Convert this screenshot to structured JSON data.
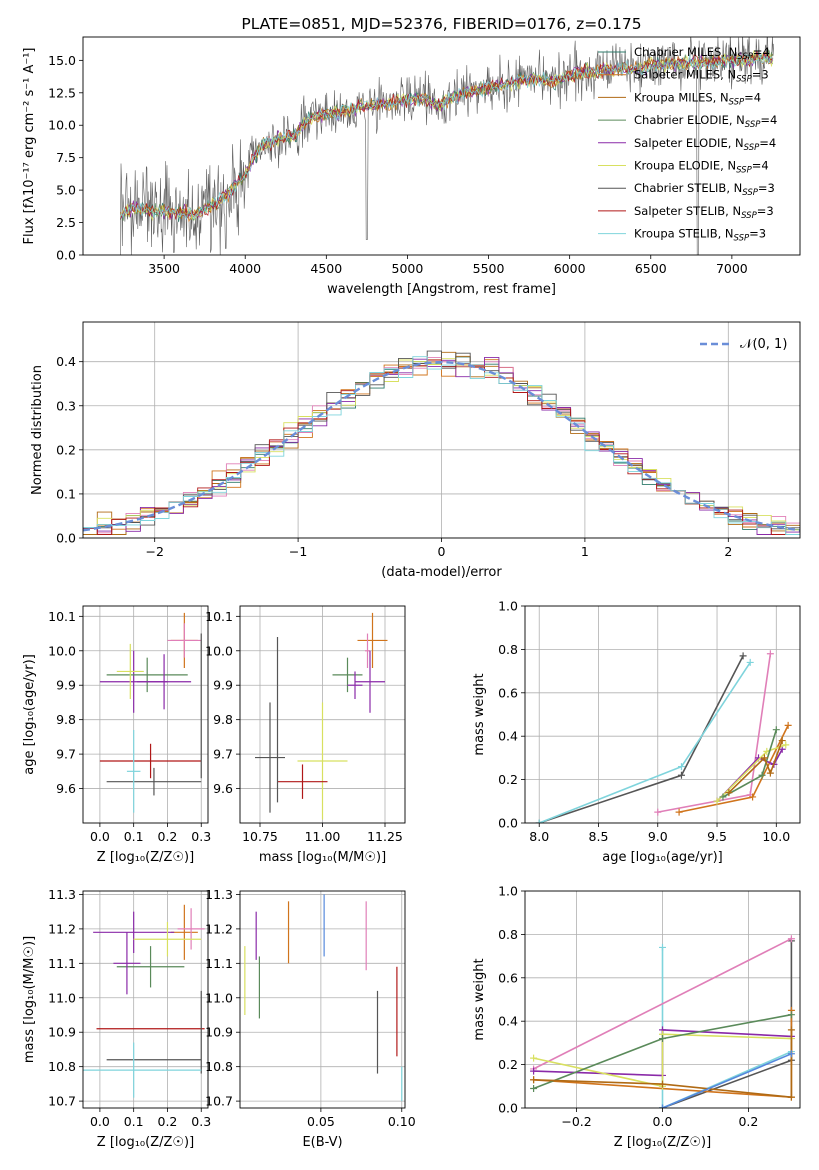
{
  "title": "PLATE=0851, MJD=52376, FIBERID=0176, z=0.175",
  "colors": {
    "chabrier_miles": "#2c7a6a",
    "salpeter_miles": "#d0741c",
    "kroupa_miles": "#b06a14",
    "chabrier_elodie": "#5a8a5a",
    "salpeter_elodie": "#8a2aa8",
    "kroupa_elodie": "#d8e060",
    "chabrier_stelib": "#555555",
    "salpeter_stelib": "#b01818",
    "kroupa_stelib": "#7fd4dc",
    "gauss": "#6a8ed8",
    "pink": "#e07fb8",
    "blue": "#5588dd"
  },
  "chart_data": [
    {
      "type": "line",
      "title": "PLATE=0851, MJD=52376, FIBERID=0176, z=0.175",
      "xlabel": "wavelength [Angstrom, rest frame]",
      "ylabel": "Flux [fλ10⁻¹⁷ erg cm⁻² s⁻¹ A⁻¹]",
      "xlim": [
        3000,
        7420
      ],
      "ylim": [
        0,
        16.8
      ],
      "xticks": [
        "3500",
        "4000",
        "4500",
        "5000",
        "5500",
        "6000",
        "6500",
        "7000"
      ],
      "yticks": [
        "0.0",
        "2.5",
        "5.0",
        "7.5",
        "10.0",
        "12.5",
        "15.0"
      ],
      "continuum": [
        [
          3230,
          3.1
        ],
        [
          3300,
          3.6
        ],
        [
          3450,
          3.4
        ],
        [
          3600,
          3.3
        ],
        [
          3700,
          3.2
        ],
        [
          3800,
          3.8
        ],
        [
          3900,
          4.8
        ],
        [
          4000,
          6.2
        ],
        [
          4100,
          8.4
        ],
        [
          4200,
          8.9
        ],
        [
          4300,
          9.2
        ],
        [
          4400,
          10.6
        ],
        [
          4500,
          10.9
        ],
        [
          4600,
          11.0
        ],
        [
          4700,
          11.4
        ],
        [
          4800,
          11.6
        ],
        [
          4900,
          11.7
        ],
        [
          5000,
          12.0
        ],
        [
          5100,
          12.1
        ],
        [
          5200,
          11.5
        ],
        [
          5300,
          12.3
        ],
        [
          5400,
          12.6
        ],
        [
          5500,
          12.9
        ],
        [
          5600,
          13.1
        ],
        [
          5700,
          13.4
        ],
        [
          5800,
          13.6
        ],
        [
          5900,
          13.3
        ],
        [
          6000,
          13.9
        ],
        [
          6100,
          14.1
        ],
        [
          6200,
          14.2
        ],
        [
          6300,
          14.4
        ],
        [
          6400,
          14.3
        ],
        [
          6500,
          14.6
        ],
        [
          6600,
          14.7
        ],
        [
          6700,
          14.8
        ],
        [
          6800,
          14.8
        ],
        [
          6900,
          14.9
        ],
        [
          7000,
          15.0
        ],
        [
          7100,
          15.1
        ],
        [
          7200,
          15.2
        ],
        [
          7260,
          15.0
        ]
      ],
      "spikes": [
        [
          3560,
          0.2
        ],
        [
          3880,
          0.5
        ],
        [
          4750,
          1.2
        ],
        [
          6790,
          0.0
        ]
      ],
      "series": [
        {
          "name": "Chabrier MILES, N_SSP=4"
        },
        {
          "name": "Salpeter MILES, N_SSP=3"
        },
        {
          "name": "Kroupa MILES, N_SSP=4"
        },
        {
          "name": "Chabrier ELODIE, N_SSP=4"
        },
        {
          "name": "Salpeter ELODIE, N_SSP=4"
        },
        {
          "name": "Kroupa ELODIE, N_SSP=4"
        },
        {
          "name": "Chabrier STELIB, N_SSP=3"
        },
        {
          "name": "Salpeter STELIB, N_SSP=3"
        },
        {
          "name": "Kroupa STELIB, N_SSP=3"
        }
      ],
      "legend": "right"
    },
    {
      "type": "histogram",
      "xlabel": "(data-model)/error",
      "ylabel": "Normed distribution",
      "xlim": [
        -2.5,
        2.5
      ],
      "ylim": [
        0,
        0.49
      ],
      "xticks": [
        "−2",
        "−1",
        "0",
        "1",
        "2"
      ],
      "yticks": [
        "0.0",
        "0.1",
        "0.2",
        "0.3",
        "0.4"
      ],
      "bin_width": 0.1,
      "legend_label": "𝒩(0, 1)",
      "grid": true
    },
    {
      "type": "scatter",
      "xlabel": "Z [log10(Z/Z☉)]",
      "ylabel": "age  [log10(age/yr)]",
      "xlim": [
        -0.05,
        0.32
      ],
      "ylim": [
        9.5,
        10.13
      ],
      "xticks": [
        "0.0",
        "0.1",
        "0.2",
        "0.3"
      ],
      "yticks": [
        "9.6",
        "9.7",
        "9.8",
        "9.9",
        "10.0",
        "10.1"
      ],
      "points": [
        {
          "x": 0.25,
          "y": 10.03,
          "xe": 0.04,
          "ye": 0.08
        },
        {
          "x": 0.25,
          "y": 10.03,
          "xe": 0.05,
          "ye": 0.05
        },
        {
          "x": 0.1,
          "y": 9.91,
          "xe": 0.1,
          "ye": 0.09
        },
        {
          "x": 0.14,
          "y": 9.93,
          "xe": 0.12,
          "ye": 0.05
        },
        {
          "x": 0.19,
          "y": 9.91,
          "xe": 0.08,
          "ye": 0.08
        },
        {
          "x": 0.09,
          "y": 9.94,
          "xe": 0.04,
          "ye": 0.08
        },
        {
          "x": 0.15,
          "y": 9.68,
          "xe": 0.15,
          "ye": 0.05
        },
        {
          "x": 0.16,
          "y": 9.62,
          "xe": 0.14,
          "ye": 0.04
        },
        {
          "x": 0.3,
          "y": 9.84,
          "xe": 0.0,
          "ye": 0.21
        },
        {
          "x": 0.1,
          "y": 9.65,
          "xe": 0.02,
          "ye": 0.12
        }
      ]
    },
    {
      "type": "scatter",
      "xlabel": "mass [log10(M/M☉)]",
      "xlim": [
        10.67,
        11.33
      ],
      "ylim": [
        9.5,
        10.13
      ],
      "xticks": [
        "10.75",
        "11.00",
        "11.25"
      ],
      "yticks": [
        "9.6",
        "9.7",
        "9.8",
        "9.9",
        "10.0",
        "10.1"
      ],
      "points": [
        {
          "x": 11.2,
          "y": 10.03,
          "xe": 0.06,
          "ye": 0.08
        },
        {
          "x": 11.18,
          "y": 10.0,
          "xe": 0.01,
          "ye": 0.05
        },
        {
          "x": 11.19,
          "y": 9.91,
          "xe": 0.06,
          "ye": 0.09
        },
        {
          "x": 11.1,
          "y": 9.93,
          "xe": 0.06,
          "ye": 0.05
        },
        {
          "x": 11.13,
          "y": 9.9,
          "xe": 0.03,
          "ye": 0.04
        },
        {
          "x": 11.0,
          "y": 9.68,
          "xe": 0.1,
          "ye": 0.17
        },
        {
          "x": 10.92,
          "y": 9.62,
          "xe": 0.1,
          "ye": 0.05
        },
        {
          "x": 10.82,
          "y": 9.8,
          "xe": 0.0,
          "ye": 0.24
        },
        {
          "x": 10.79,
          "y": 9.69,
          "xe": 0.06,
          "ye": 0.16
        }
      ]
    },
    {
      "type": "line",
      "xlabel": "age  [log10(age/yr)]",
      "ylabel": "mass weight",
      "xlim": [
        7.88,
        10.2
      ],
      "ylim": [
        0,
        1.0
      ],
      "xticks": [
        "8.0",
        "8.5",
        "9.0",
        "9.5",
        "10.0"
      ],
      "yticks": [
        "0.0",
        "0.2",
        "0.4",
        "0.6",
        "0.8",
        "1.0"
      ],
      "series": [
        {
          "points": [
            [
              8.0,
              0.0
            ],
            [
              9.2,
              0.22
            ],
            [
              9.72,
              0.77
            ]
          ]
        },
        {
          "points": [
            [
              8.0,
              0.0
            ],
            [
              9.2,
              0.26
            ],
            [
              9.78,
              0.74
            ]
          ]
        },
        {
          "points": [
            [
              9.0,
              0.05
            ],
            [
              9.78,
              0.13
            ],
            [
              9.95,
              0.78
            ]
          ]
        },
        {
          "points": [
            [
              9.18,
              0.05
            ],
            [
              9.8,
              0.12
            ],
            [
              10.1,
              0.45
            ]
          ]
        },
        {
          "points": [
            [
              9.5,
              0.1
            ],
            [
              9.85,
              0.3
            ],
            [
              9.98,
              0.27
            ],
            [
              10.05,
              0.34
            ]
          ]
        },
        {
          "points": [
            [
              9.5,
              0.1
            ],
            [
              9.92,
              0.33
            ],
            [
              10.08,
              0.36
            ]
          ]
        },
        {
          "points": [
            [
              9.55,
              0.12
            ],
            [
              9.88,
              0.22
            ],
            [
              10.0,
              0.43
            ]
          ]
        },
        {
          "points": [
            [
              9.6,
              0.14
            ],
            [
              9.9,
              0.3
            ],
            [
              9.95,
              0.23
            ],
            [
              10.05,
              0.38
            ]
          ]
        }
      ]
    },
    {
      "type": "scatter",
      "xlabel": "Z [log10(Z/Z☉)]",
      "ylabel": "mass [log10(M/M☉)]",
      "xlim": [
        -0.05,
        0.32
      ],
      "ylim": [
        10.68,
        11.31
      ],
      "xticks": [
        "0.0",
        "0.1",
        "0.2",
        "0.3"
      ],
      "yticks": [
        "10.7",
        "10.8",
        "10.9",
        "11.0",
        "11.1",
        "11.2",
        "11.3"
      ],
      "points": [
        {
          "x": 0.25,
          "y": 11.19,
          "xe": 0.04,
          "ye": 0.08
        },
        {
          "x": 0.27,
          "y": 11.2,
          "xe": 0.04,
          "ye": 0.06
        },
        {
          "x": 0.1,
          "y": 11.19,
          "xe": 0.12,
          "ye": 0.06
        },
        {
          "x": 0.15,
          "y": 11.09,
          "xe": 0.1,
          "ye": 0.06
        },
        {
          "x": 0.08,
          "y": 11.1,
          "xe": 0.04,
          "ye": 0.09
        },
        {
          "x": 0.2,
          "y": 11.17,
          "xe": 0.1,
          "ye": 0.05
        },
        {
          "x": 0.15,
          "y": 10.91,
          "xe": 0.16,
          "ye": 0.0
        },
        {
          "x": 0.16,
          "y": 10.82,
          "xe": 0.14,
          "ye": 0.0
        },
        {
          "x": 0.3,
          "y": 10.9,
          "xe": 0.0,
          "ye": 0.12
        },
        {
          "x": 0.1,
          "y": 10.79,
          "xe": 0.2,
          "ye": 0.08
        }
      ]
    },
    {
      "type": "errorbar",
      "xlabel": "E(B-V)",
      "xlim": [
        0.0,
        0.102
      ],
      "ylim": [
        10.68,
        11.31
      ],
      "xticks": [
        "0.05",
        "0.10"
      ],
      "yticks": [
        "10.7",
        "10.8",
        "10.9",
        "11.0",
        "11.1",
        "11.2",
        "11.3"
      ],
      "points": [
        {
          "x": 0.003,
          "y": 11.05,
          "ye": 0.1
        },
        {
          "x": 0.01,
          "y": 11.18,
          "ye": 0.07
        },
        {
          "x": 0.012,
          "y": 11.03,
          "ye": 0.09
        },
        {
          "x": 0.03,
          "y": 11.19,
          "ye": 0.09
        },
        {
          "x": 0.052,
          "y": 11.21,
          "ye": 0.09
        },
        {
          "x": 0.078,
          "y": 11.18,
          "ye": 0.1
        },
        {
          "x": 0.085,
          "y": 10.9,
          "ye": 0.12
        },
        {
          "x": 0.097,
          "y": 10.96,
          "ye": 0.13
        },
        {
          "x": 0.1,
          "y": 10.75,
          "ye": 0.05
        }
      ]
    },
    {
      "type": "line",
      "xlabel": "Z [log10(Z/Z☉)]",
      "ylabel": "mass weight",
      "xlim": [
        -0.32,
        0.32
      ],
      "ylim": [
        0,
        1.0
      ],
      "xticks": [
        "−0.2",
        "0.0",
        "0.2"
      ],
      "yticks": [
        "0.0",
        "0.2",
        "0.4",
        "0.6",
        "0.8",
        "1.0"
      ],
      "series": [
        {
          "points": [
            [
              0.3,
              0.77
            ],
            [
              0.3,
              0.22
            ],
            [
              0.0,
              0.0
            ],
            [
              0.0,
              0.0
            ]
          ]
        },
        {
          "points": [
            [
              0.0,
              0.74
            ],
            [
              0.0,
              0.0
            ],
            [
              0.3,
              0.26
            ]
          ]
        },
        {
          "points": [
            [
              -0.3,
              0.18
            ],
            [
              0.3,
              0.78
            ]
          ]
        },
        {
          "points": [
            [
              -0.3,
              0.13
            ],
            [
              0.3,
              0.05
            ],
            [
              0.3,
              0.45
            ]
          ]
        },
        {
          "points": [
            [
              -0.3,
              0.17
            ],
            [
              0.0,
              0.15
            ],
            [
              0.0,
              0.36
            ],
            [
              0.3,
              0.33
            ]
          ]
        },
        {
          "points": [
            [
              -0.3,
              0.23
            ],
            [
              0.0,
              0.1
            ],
            [
              0.0,
              0.34
            ],
            [
              0.3,
              0.32
            ]
          ]
        },
        {
          "points": [
            [
              -0.3,
              0.09
            ],
            [
              0.0,
              0.32
            ],
            [
              0.3,
              0.43
            ]
          ]
        },
        {
          "points": [
            [
              -0.3,
              0.13
            ],
            [
              0.0,
              0.11
            ],
            [
              0.3,
              0.05
            ],
            [
              0.3,
              0.36
            ]
          ]
        },
        {
          "points": [
            [
              0.0,
              0.0
            ],
            [
              0.3,
              0.25
            ]
          ]
        }
      ]
    }
  ]
}
